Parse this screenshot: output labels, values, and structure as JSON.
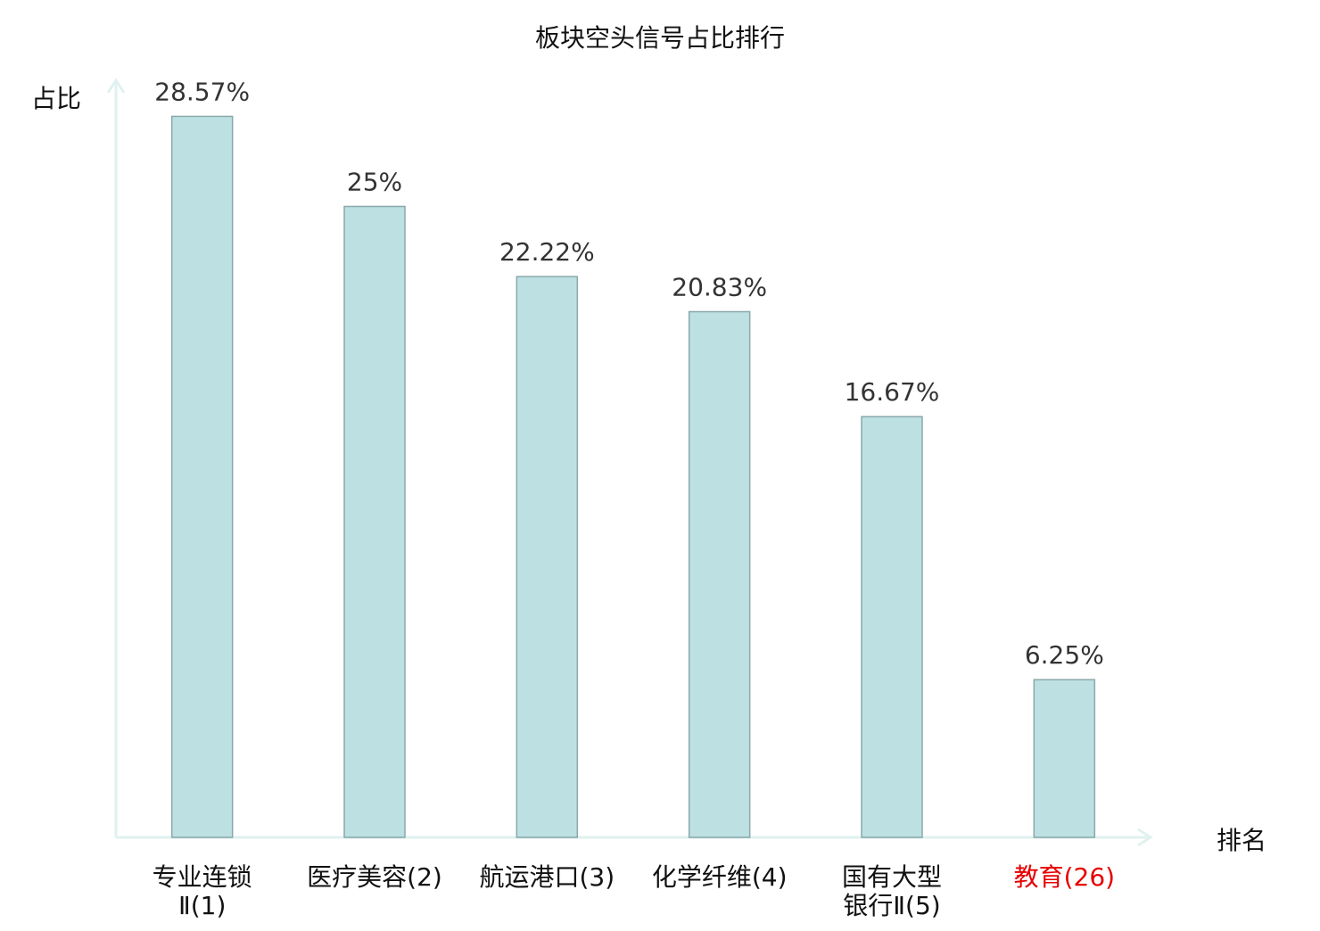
{
  "chart_data": {
    "type": "bar",
    "title": "板块空头信号占比排行",
    "xlabel": "排名",
    "ylabel": "占比",
    "categories": [
      [
        "专业连锁",
        "Ⅱ(1)"
      ],
      [
        "医疗美容(2)"
      ],
      [
        "航运港口(3)"
      ],
      [
        "化学纤维(4)"
      ],
      [
        "国有大型",
        "银行Ⅱ(5)"
      ],
      [
        "教育(26)"
      ]
    ],
    "values": [
      28.57,
      25,
      22.22,
      20.83,
      16.67,
      6.25
    ],
    "data_labels": [
      "28.57%",
      "25%",
      "22.22%",
      "20.83%",
      "16.67%",
      "6.25%"
    ],
    "highlight_index": 5,
    "ylim": [
      0,
      30
    ],
    "grid": false,
    "colors": {
      "bar_fill": "#bde0e3",
      "bar_stroke": "#8aa8aa",
      "axis": "#dff2ef",
      "label": "#111111",
      "highlight_label": "#e60000",
      "data_label": "#333333"
    }
  }
}
